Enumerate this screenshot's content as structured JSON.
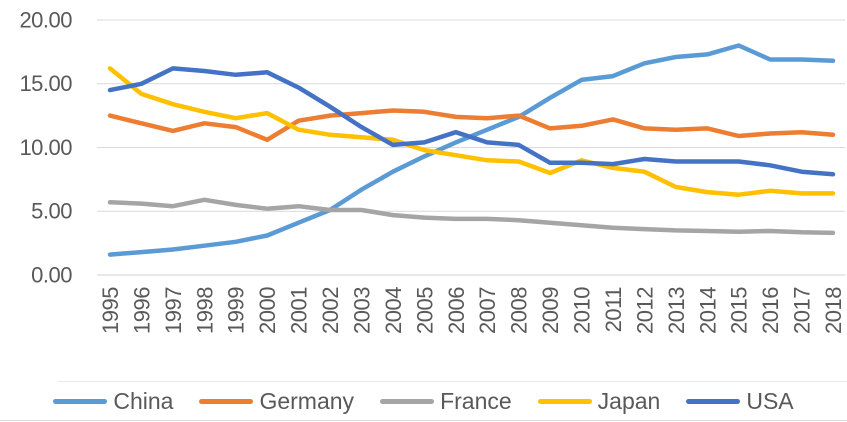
{
  "chart_data": {
    "type": "line",
    "title": "",
    "xlabel": "",
    "ylabel": "",
    "categories": [
      "1995",
      "1996",
      "1997",
      "1998",
      "1999",
      "2000",
      "2001",
      "2002",
      "2003",
      "2004",
      "2005",
      "2006",
      "2007",
      "2008",
      "2009",
      "2010",
      "2011",
      "2012",
      "2013",
      "2014",
      "2015",
      "2016",
      "2017",
      "2018"
    ],
    "series": [
      {
        "name": "China",
        "color": "#5B9BD5",
        "values": [
          1.6,
          1.8,
          2.0,
          2.3,
          2.6,
          3.1,
          4.1,
          5.1,
          6.7,
          8.1,
          9.3,
          10.4,
          11.4,
          12.4,
          13.9,
          15.3,
          15.6,
          16.6,
          17.1,
          17.3,
          18.0,
          16.9,
          16.9,
          16.8
        ]
      },
      {
        "name": "Germany",
        "color": "#ED7D31",
        "values": [
          12.5,
          11.9,
          11.3,
          11.9,
          11.6,
          10.6,
          12.1,
          12.5,
          12.7,
          12.9,
          12.8,
          12.4,
          12.3,
          12.5,
          11.5,
          11.7,
          12.2,
          11.5,
          11.4,
          11.5,
          10.9,
          11.1,
          11.2,
          11.0
        ]
      },
      {
        "name": "France",
        "color": "#A5A5A5",
        "values": [
          5.7,
          5.6,
          5.4,
          5.9,
          5.5,
          5.2,
          5.4,
          5.1,
          5.1,
          4.7,
          4.5,
          4.4,
          4.4,
          4.3,
          4.1,
          3.9,
          3.7,
          3.6,
          3.5,
          3.45,
          3.4,
          3.45,
          3.35,
          3.3
        ]
      },
      {
        "name": "Japan",
        "color": "#FFC000",
        "values": [
          16.2,
          14.2,
          13.4,
          12.8,
          12.3,
          12.7,
          11.4,
          11.0,
          10.8,
          10.6,
          9.8,
          9.4,
          9.0,
          8.9,
          8.0,
          9.0,
          8.4,
          8.1,
          6.9,
          6.5,
          6.3,
          6.6,
          6.4,
          6.4
        ]
      },
      {
        "name": "USA",
        "color": "#4472C4",
        "values": [
          14.5,
          15.0,
          16.2,
          16.0,
          15.7,
          15.9,
          14.7,
          13.2,
          11.6,
          10.2,
          10.4,
          11.2,
          10.4,
          10.2,
          8.8,
          8.8,
          8.7,
          9.1,
          8.9,
          8.9,
          8.9,
          8.6,
          8.1,
          7.9
        ]
      }
    ],
    "ylim": [
      0,
      20
    ],
    "yticks": [
      {
        "value": 0,
        "label": "0.00"
      },
      {
        "value": 5,
        "label": "5.00"
      },
      {
        "value": 10,
        "label": "10.00"
      },
      {
        "value": 15,
        "label": "15.00"
      },
      {
        "value": 20,
        "label": "20.00"
      }
    ],
    "grid": "horizontal",
    "legend_position": "bottom"
  },
  "style": {
    "axis_text_color": "#595959",
    "gridline_color": "#D9D9D9",
    "axis_line_color": "#D0D0D0",
    "legend_rule_color": "#E8E8E8",
    "bottom_rule_color": "#D9D9D9",
    "background": "#FFFFFF"
  }
}
